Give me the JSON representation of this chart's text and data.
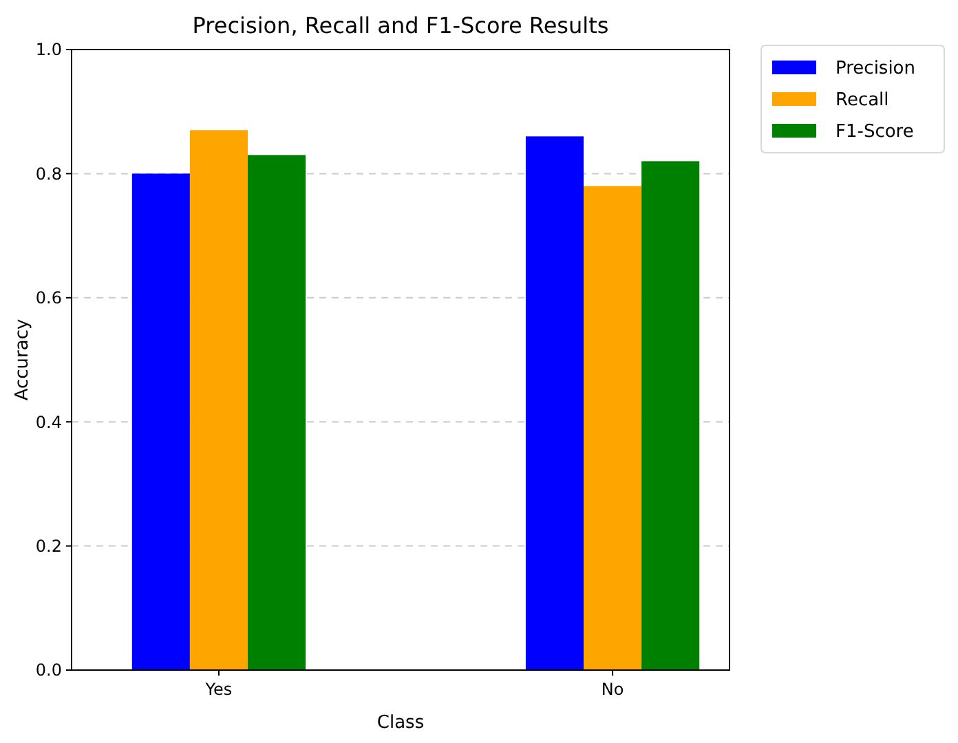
{
  "chart_data": {
    "type": "bar",
    "title": "Precision, Recall and F1-Score Results",
    "xlabel": "Class",
    "ylabel": "Accuracy",
    "categories": [
      "Yes",
      "No"
    ],
    "series": [
      {
        "name": "Precision",
        "color": "#0000ff",
        "values": [
          0.8,
          0.86
        ]
      },
      {
        "name": "Recall",
        "color": "#ffa500",
        "values": [
          0.87,
          0.78
        ]
      },
      {
        "name": "F1-Score",
        "color": "#008000",
        "values": [
          0.83,
          0.82
        ]
      }
    ],
    "ylim": [
      0,
      1.0
    ],
    "yticks": [
      {
        "value": 0,
        "label": "0.0"
      },
      {
        "value": 0.2,
        "label": "0.2"
      },
      {
        "value": 0.4,
        "label": "0.4"
      },
      {
        "value": 0.6,
        "label": "0.6"
      },
      {
        "value": 0.8,
        "label": "0.8"
      },
      {
        "value": 1.0,
        "label": "1.0"
      }
    ],
    "grid": "y",
    "legend": "top right"
  }
}
